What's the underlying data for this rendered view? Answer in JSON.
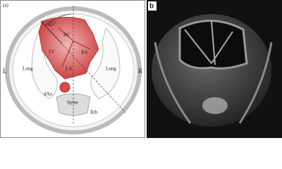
{
  "panel_a": {
    "label": "(a)",
    "angle": "45°",
    "chambers": {
      "rv": "RV",
      "lv": "LV",
      "ra": "RA",
      "la": "LA"
    },
    "lung_left": "Lung",
    "lung_right": "Lung",
    "side_left": "L",
    "side_right": "R",
    "aorta": "dAo",
    "spine": "Spine",
    "rib": "Rib"
  },
  "panel_b": {
    "label": "b"
  }
}
